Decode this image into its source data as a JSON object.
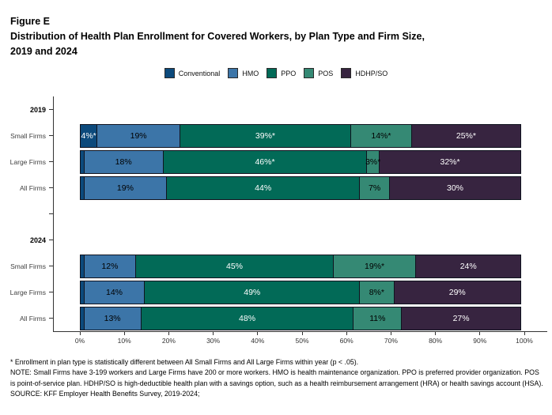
{
  "header": {
    "figure_label": "Figure E",
    "title_line1": "Distribution of Health Plan Enrollment for Covered Workers, by Plan Type and Firm Size,",
    "title_line2": "2019 and 2024"
  },
  "legend": {
    "items": [
      {
        "label": "Conventional",
        "color": "#0C4A7C"
      },
      {
        "label": "HMO",
        "color": "#3C75A8"
      },
      {
        "label": "PPO",
        "color": "#026A57"
      },
      {
        "label": "POS",
        "color": "#358974"
      },
      {
        "label": "HDHP/SO",
        "color": "#372440"
      }
    ]
  },
  "chart_data": {
    "type": "bar",
    "orientation": "horizontal",
    "stacked": true,
    "x_axis": {
      "ticks": [
        "0%",
        "10%",
        "20%",
        "30%",
        "40%",
        "50%",
        "60%",
        "70%",
        "80%",
        "90%",
        "100%"
      ],
      "range": [
        0,
        100
      ],
      "grid": false
    },
    "plan_types": [
      "Conventional",
      "HMO",
      "PPO",
      "POS",
      "HDHP/SO"
    ],
    "series_colors": {
      "Conventional": "#0C4A7C",
      "HMO": "#3C75A8",
      "PPO": "#026A57",
      "POS": "#358974",
      "HDHP/SO": "#372440"
    },
    "label_colors": {
      "Conventional": "#FFFFFF",
      "HMO": "#000000",
      "PPO": "#FFFFFF",
      "POS": "#000000",
      "HDHP/SO": "#FFFFFF"
    },
    "rows": [
      {
        "kind": "year-label",
        "label": "2019"
      },
      {
        "kind": "bar",
        "label": "Small Firms",
        "year": "2019",
        "segments": [
          {
            "plan": "Conventional",
            "value": 4,
            "label": "4%*"
          },
          {
            "plan": "HMO",
            "value": 19,
            "label": "19%"
          },
          {
            "plan": "PPO",
            "value": 39,
            "label": "39%*"
          },
          {
            "plan": "POS",
            "value": 14,
            "label": "14%*"
          },
          {
            "plan": "HDHP/SO",
            "value": 25,
            "label": "25%*"
          }
        ]
      },
      {
        "kind": "bar",
        "label": "Large Firms",
        "year": "2019",
        "segments": [
          {
            "plan": "Conventional",
            "value": 1,
            "label": ""
          },
          {
            "plan": "HMO",
            "value": 18,
            "label": "18%"
          },
          {
            "plan": "PPO",
            "value": 46,
            "label": "46%*"
          },
          {
            "plan": "POS",
            "value": 3,
            "label": "3%*"
          },
          {
            "plan": "HDHP/SO",
            "value": 32,
            "label": "32%*"
          }
        ]
      },
      {
        "kind": "bar",
        "label": "All Firms",
        "year": "2019",
        "segments": [
          {
            "plan": "Conventional",
            "value": 1,
            "label": ""
          },
          {
            "plan": "HMO",
            "value": 19,
            "label": "19%"
          },
          {
            "plan": "PPO",
            "value": 44,
            "label": "44%"
          },
          {
            "plan": "POS",
            "value": 7,
            "label": "7%"
          },
          {
            "plan": "HDHP/SO",
            "value": 30,
            "label": "30%"
          }
        ]
      },
      {
        "kind": "spacer",
        "label": ""
      },
      {
        "kind": "year-label",
        "label": "2024"
      },
      {
        "kind": "bar",
        "label": "Small Firms",
        "year": "2024",
        "segments": [
          {
            "plan": "Conventional",
            "value": 1,
            "label": ""
          },
          {
            "plan": "HMO",
            "value": 12,
            "label": "12%"
          },
          {
            "plan": "PPO",
            "value": 45,
            "label": "45%"
          },
          {
            "plan": "POS",
            "value": 19,
            "label": "19%*"
          },
          {
            "plan": "HDHP/SO",
            "value": 24,
            "label": "24%"
          }
        ]
      },
      {
        "kind": "bar",
        "label": "Large Firms",
        "year": "2024",
        "segments": [
          {
            "plan": "Conventional",
            "value": 1,
            "label": ""
          },
          {
            "plan": "HMO",
            "value": 14,
            "label": "14%"
          },
          {
            "plan": "PPO",
            "value": 49,
            "label": "49%"
          },
          {
            "plan": "POS",
            "value": 8,
            "label": "8%*"
          },
          {
            "plan": "HDHP/SO",
            "value": 29,
            "label": "29%"
          }
        ]
      },
      {
        "kind": "bar",
        "label": "All Firms",
        "year": "2024",
        "segments": [
          {
            "plan": "Conventional",
            "value": 1,
            "label": ""
          },
          {
            "plan": "HMO",
            "value": 13,
            "label": "13%"
          },
          {
            "plan": "PPO",
            "value": 48,
            "label": "48%"
          },
          {
            "plan": "POS",
            "value": 11,
            "label": "11%"
          },
          {
            "plan": "HDHP/SO",
            "value": 27,
            "label": "27%"
          }
        ]
      }
    ]
  },
  "footnotes": {
    "significance": "* Enrollment in plan type is statistically different between All Small Firms and All Large Firms within year (p < .05).",
    "note": "NOTE: Small Firms have 3-199 workers and Large Firms have 200 or more workers. HMO is health maintenance organization. PPO is preferred provider organization. POS is point-of-service plan. HDHP/SO is high-deductible health plan with a savings option, such as a health reimbursement arrangement (HRA) or health savings account (HSA).",
    "source": "SOURCE: KFF Employer Health Benefits Survey, 2019-2024;"
  }
}
